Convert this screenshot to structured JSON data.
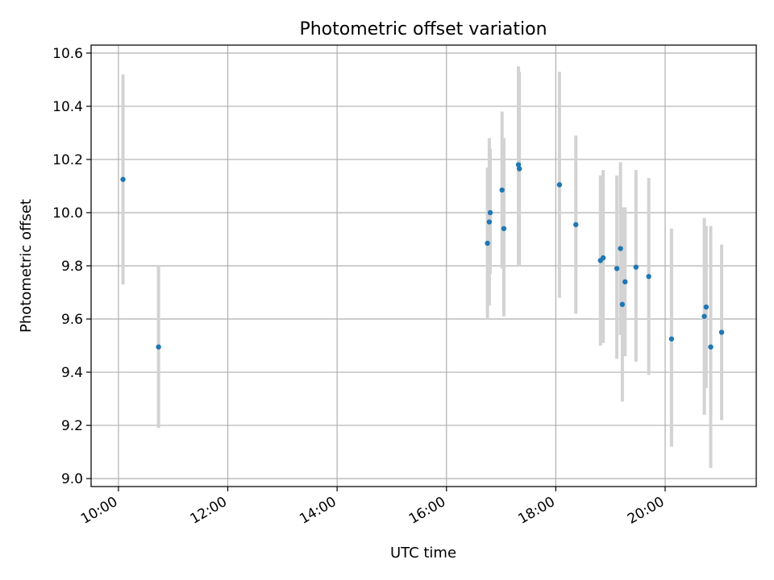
{
  "chart_data": {
    "type": "scatter",
    "title": "Photometric offset variation",
    "xlabel": "UTC time",
    "ylabel": "Photometric offset",
    "x_ticks": [
      "10:00",
      "12:00",
      "14:00",
      "16:00",
      "18:00",
      "20:00"
    ],
    "y_ticks": [
      "9.0",
      "9.2",
      "9.4",
      "9.6",
      "9.8",
      "10.0",
      "10.2",
      "10.4",
      "10.6"
    ],
    "xlim": [
      "09:30",
      "21:40"
    ],
    "ylim": [
      8.97,
      10.63
    ],
    "grid": true,
    "marker_color": "#1f77b4",
    "errorbar_color": "#d3d3d3",
    "points": [
      {
        "t": "10:05",
        "y": 10.125,
        "lo": 9.73,
        "hi": 10.52
      },
      {
        "t": "10:44",
        "y": 9.495,
        "lo": 9.19,
        "hi": 9.8
      },
      {
        "t": "16:45",
        "y": 9.885,
        "lo": 9.6,
        "hi": 10.17
      },
      {
        "t": "16:47",
        "y": 9.965,
        "lo": 9.65,
        "hi": 10.28
      },
      {
        "t": "16:48",
        "y": 10.0,
        "lo": 9.77,
        "hi": 10.24
      },
      {
        "t": "17:01",
        "y": 10.085,
        "lo": 9.79,
        "hi": 10.38
      },
      {
        "t": "17:03",
        "y": 9.94,
        "lo": 9.61,
        "hi": 10.28
      },
      {
        "t": "17:19",
        "y": 10.18,
        "lo": 9.8,
        "hi": 10.55
      },
      {
        "t": "17:20",
        "y": 10.165,
        "lo": 9.8,
        "hi": 10.53
      },
      {
        "t": "18:04",
        "y": 10.105,
        "lo": 9.68,
        "hi": 10.53
      },
      {
        "t": "18:22",
        "y": 9.955,
        "lo": 9.62,
        "hi": 10.29
      },
      {
        "t": "18:49",
        "y": 9.82,
        "lo": 9.5,
        "hi": 10.14
      },
      {
        "t": "18:52",
        "y": 9.83,
        "lo": 9.51,
        "hi": 10.16
      },
      {
        "t": "19:07",
        "y": 9.79,
        "lo": 9.45,
        "hi": 10.14
      },
      {
        "t": "19:11",
        "y": 9.865,
        "lo": 9.54,
        "hi": 10.19
      },
      {
        "t": "19:13",
        "y": 9.655,
        "lo": 9.29,
        "hi": 10.02
      },
      {
        "t": "19:16",
        "y": 9.74,
        "lo": 9.46,
        "hi": 10.02
      },
      {
        "t": "19:28",
        "y": 9.795,
        "lo": 9.44,
        "hi": 10.16
      },
      {
        "t": "19:42",
        "y": 9.76,
        "lo": 9.39,
        "hi": 10.13
      },
      {
        "t": "20:07",
        "y": 9.525,
        "lo": 9.12,
        "hi": 9.94
      },
      {
        "t": "20:43",
        "y": 9.61,
        "lo": 9.24,
        "hi": 9.98
      },
      {
        "t": "20:45",
        "y": 9.645,
        "lo": 9.34,
        "hi": 9.95
      },
      {
        "t": "20:50",
        "y": 9.495,
        "lo": 9.04,
        "hi": 9.95
      },
      {
        "t": "21:02",
        "y": 9.55,
        "lo": 9.22,
        "hi": 9.88
      }
    ]
  }
}
